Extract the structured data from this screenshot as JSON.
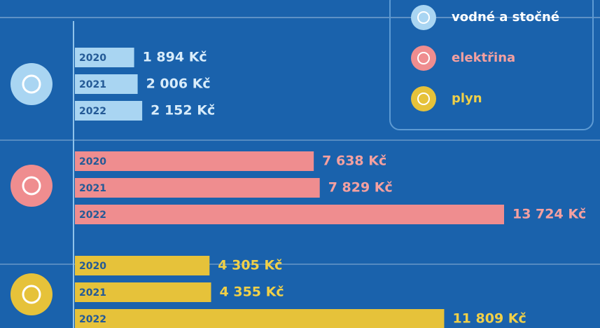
{
  "chart_data": {
    "type": "bar",
    "orientation": "horizontal",
    "categories": [
      "2020",
      "2021",
      "2022"
    ],
    "series": [
      {
        "name": "vodné a stočné",
        "color": "#a9d5f2",
        "values": [
          1894,
          2006,
          2152
        ],
        "value_labels": [
          "1 894 Kč",
          "2 006 Kč",
          "2 152 Kč"
        ]
      },
      {
        "name": "elektřina",
        "color": "#ef8d8f",
        "values": [
          7638,
          7829,
          13724
        ],
        "value_labels": [
          "7 638 Kč",
          "7 829 Kč",
          "13 724 Kč"
        ]
      },
      {
        "name": "plyn",
        "color": "#e6c23a",
        "values": [
          4305,
          4355,
          11809
        ],
        "value_labels": [
          "4 305 Kč",
          "4 355 Kč",
          "11 809 Kč"
        ]
      }
    ],
    "legend": "top-right"
  }
}
